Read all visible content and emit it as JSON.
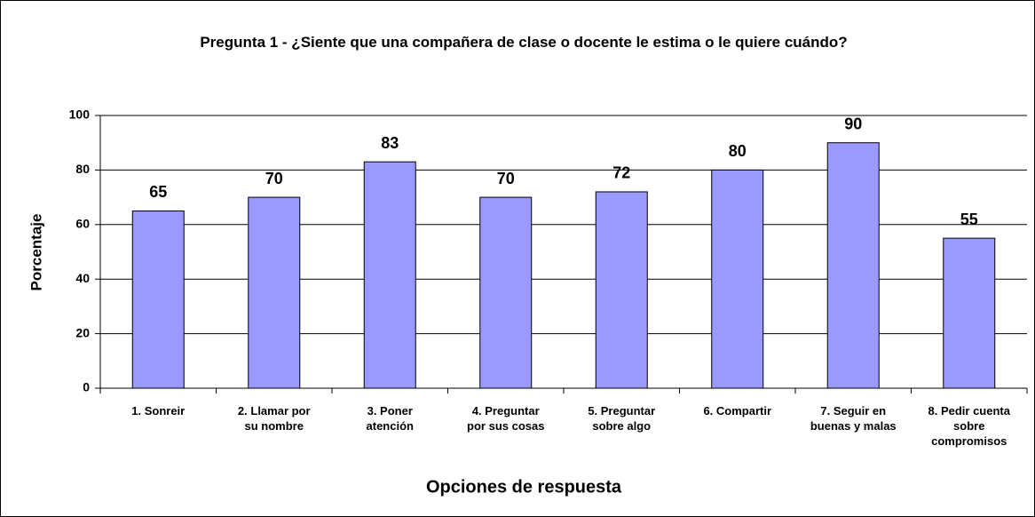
{
  "chart_data": {
    "type": "bar",
    "title": "Pregunta 1 - ¿Siente que una compañera de clase o docente le estima o le quiere cuándo?",
    "x_label": "Opciones de respuesta",
    "y_label": "Porcentaje",
    "categories": [
      "1. Sonreir",
      "2. Llamar por su nombre",
      "3. Poner atención",
      "4. Preguntar por sus cosas",
      "5. Preguntar sobre algo",
      "6. Compartir",
      "7. Seguir en buenas y malas",
      "8. Pedir cuenta sobre compromisos"
    ],
    "values": [
      65,
      70,
      83,
      70,
      72,
      80,
      90,
      55
    ],
    "color": "#9999ff",
    "ylim": [
      0,
      100
    ],
    "yticks": [
      0,
      20,
      40,
      60,
      80,
      100
    ],
    "grid": true
  }
}
